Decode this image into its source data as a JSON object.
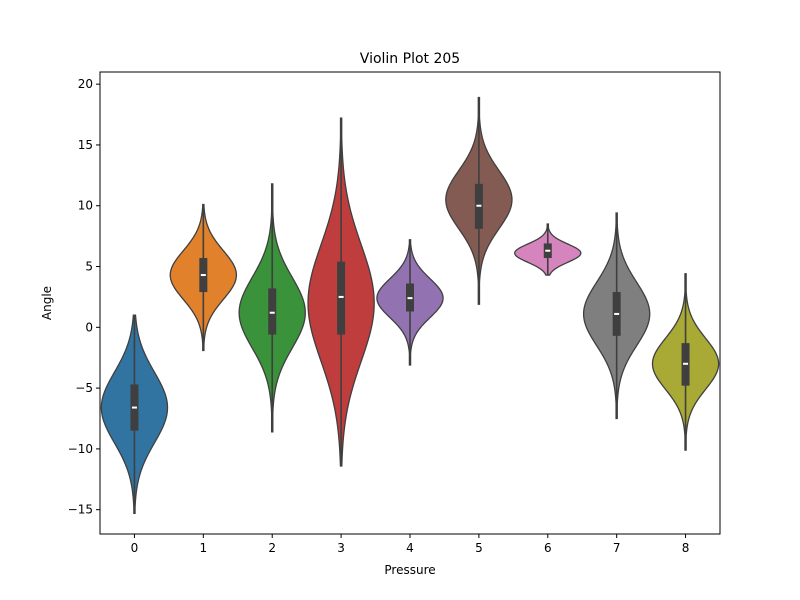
{
  "chart_data": {
    "type": "violin",
    "title": "Violin Plot 205",
    "xlabel": "Pressure",
    "ylabel": "Angle",
    "ylim": [
      -17,
      21
    ],
    "yticks": [
      -15,
      -10,
      -5,
      0,
      5,
      10,
      15,
      20
    ],
    "categories": [
      "0",
      "1",
      "2",
      "3",
      "4",
      "5",
      "6",
      "7",
      "8"
    ],
    "grid": false,
    "legend": "none",
    "violins": [
      {
        "category": "0",
        "color": "#3274a1",
        "min": -15.3,
        "max": 1.0,
        "q1": -8.5,
        "median": -6.6,
        "q3": -4.7,
        "mode": -6.6,
        "sd": 2.9
      },
      {
        "category": "1",
        "color": "#e1812c",
        "min": -1.9,
        "max": 10.1,
        "q1": 2.9,
        "median": 4.3,
        "q3": 5.7,
        "mode": 4.3,
        "sd": 2.0
      },
      {
        "category": "2",
        "color": "#3a923a",
        "min": -8.6,
        "max": 11.8,
        "q1": -0.6,
        "median": 1.2,
        "q3": 3.2,
        "mode": 1.2,
        "sd": 2.9
      },
      {
        "category": "3",
        "color": "#c03d3e",
        "min": -11.4,
        "max": 17.2,
        "q1": -0.6,
        "median": 2.5,
        "q3": 5.4,
        "mode": 2.0,
        "sd": 4.8
      },
      {
        "category": "4",
        "color": "#9372b2",
        "min": -3.1,
        "max": 7.2,
        "q1": 1.3,
        "median": 2.4,
        "q3": 3.6,
        "mode": 2.4,
        "sd": 1.6
      },
      {
        "category": "5",
        "color": "#845b53",
        "min": 1.9,
        "max": 18.9,
        "q1": 8.1,
        "median": 10.0,
        "q3": 11.8,
        "mode": 10.5,
        "sd": 2.4
      },
      {
        "category": "6",
        "color": "#d684bd",
        "min": 4.3,
        "max": 8.5,
        "q1": 5.7,
        "median": 6.3,
        "q3": 6.9,
        "mode": 6.1,
        "sd": 0.75
      },
      {
        "category": "7",
        "color": "#7f7f7f",
        "min": -7.5,
        "max": 9.4,
        "q1": -0.7,
        "median": 1.1,
        "q3": 2.9,
        "mode": 1.1,
        "sd": 2.6
      },
      {
        "category": "8",
        "color": "#a9aa35",
        "min": -10.1,
        "max": 4.4,
        "q1": -4.8,
        "median": -3.0,
        "q3": -1.3,
        "mode": -3.0,
        "sd": 2.1
      }
    ]
  }
}
